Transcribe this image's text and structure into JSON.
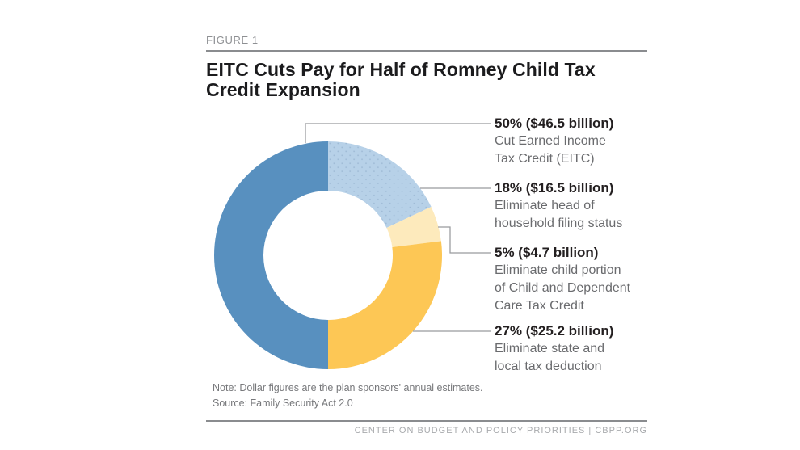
{
  "figure_label": "FIGURE 1",
  "title": "EITC Cuts Pay for Half of Romney Child Tax\nCredit Expansion",
  "chart_data": {
    "type": "pie",
    "subtype": "donut",
    "title": "EITC Cuts Pay for Half of Romney Child Tax Credit Expansion",
    "legend_position": "right",
    "start_angle": "top",
    "direction": "clockwise",
    "slices": [
      {
        "id": "cut-eitc",
        "label": "Cut Earned Income Tax Credit (EITC)",
        "value_pct": 50,
        "amount_billions": 46.5,
        "headline": "50% ($46.5 billion)",
        "desc": "Cut Earned Income\nTax Credit (EITC)",
        "color": "#5890bf"
      },
      {
        "id": "head-of-household",
        "label": "Eliminate head of household filing status",
        "value_pct": 18,
        "amount_billions": 16.5,
        "headline": "18% ($16.5 billion)",
        "desc": "Eliminate head of\nhousehold filing status",
        "color": "#b7d1e8",
        "texture": "dots",
        "texture_color": "#9db9d4"
      },
      {
        "id": "child-dependent-care",
        "label": "Eliminate child portion of Child and Dependent Care Tax Credit",
        "value_pct": 5,
        "amount_billions": 4.7,
        "headline": "5% ($4.7 billion)",
        "desc": "Eliminate child portion\nof Child and Dependent\nCare Tax Credit",
        "color": "#fdeabc"
      },
      {
        "id": "state-local-tax",
        "label": "Eliminate state and local tax deduction",
        "value_pct": 27,
        "amount_billions": 25.2,
        "headline": "27% ($25.2 billion)",
        "desc": "Eliminate state and\nlocal tax deduction",
        "color": "#fdc755"
      }
    ]
  },
  "note": "Note: Dollar figures are the plan sponsors' annual estimates.",
  "source": "Source: Family Security Act 2.0",
  "footer": "CENTER ON BUDGET AND POLICY PRIORITIES | CBPP.ORG",
  "colors": {
    "leader_line": "#999b9e",
    "headline_text": "#231f20",
    "desc_text": "#6a6b6e",
    "rule": "#8a8c8f"
  }
}
